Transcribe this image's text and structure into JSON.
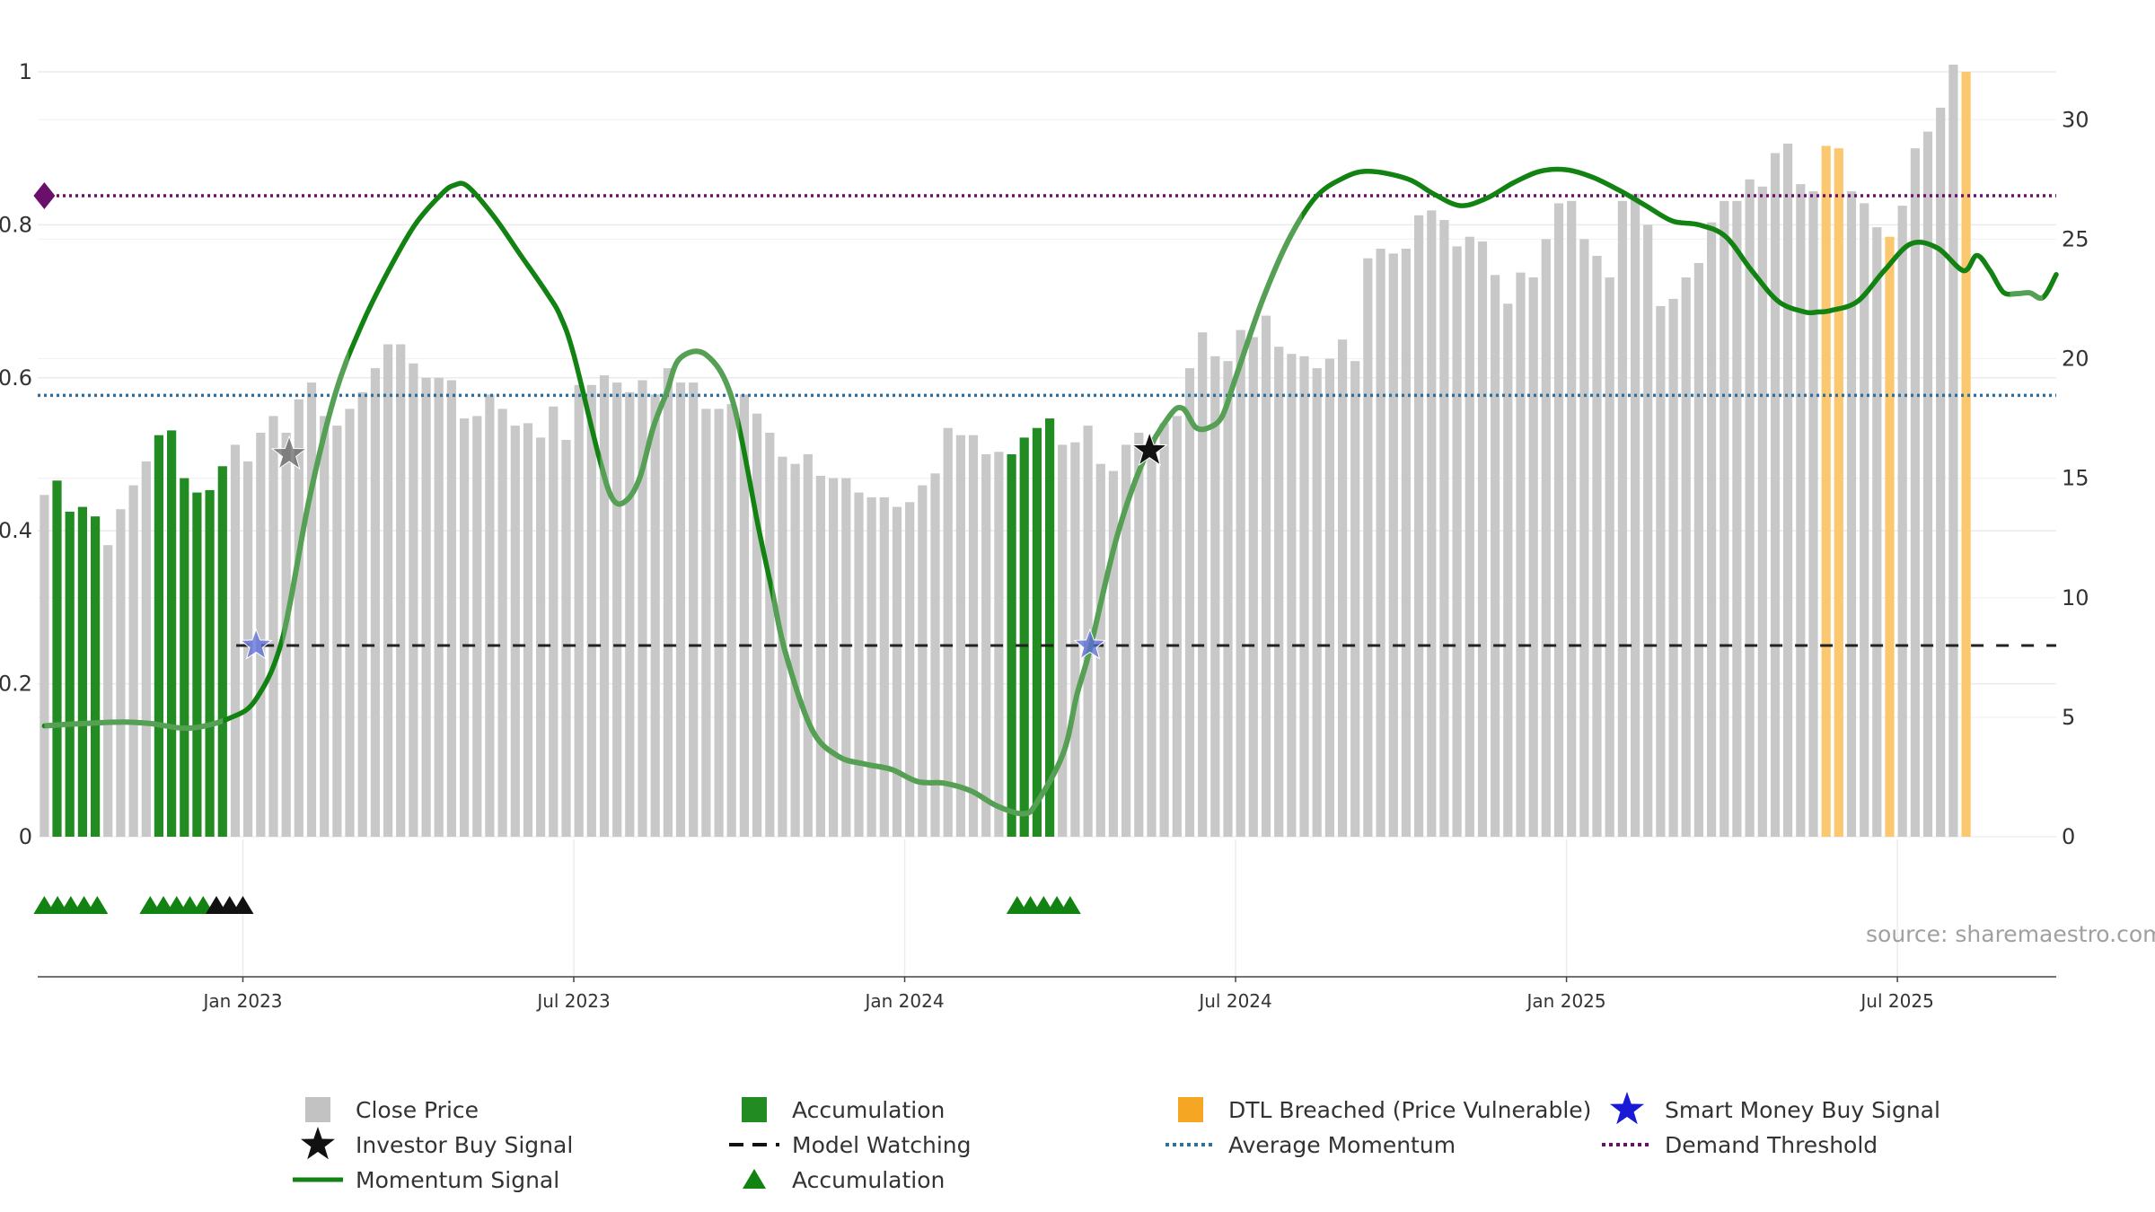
{
  "chart_data": {
    "type": "bar",
    "source_note": "source: sharemaestro.com",
    "colors": {
      "close": "#c8c8c8",
      "accumulation": "#228b22",
      "dtl": "#fbc870",
      "momentum": "#128212",
      "momentum_weak": "#55a055",
      "average": "#2f6f9f",
      "demand": "#6a0f6a",
      "model": "#222222",
      "smart_money": "#5a6ad8",
      "investor": "#111111",
      "investor_weak": "#666666"
    },
    "left_axis": {
      "range": [
        0,
        1
      ],
      "ticks": [
        0,
        0.2,
        0.4,
        0.6,
        0.8,
        1
      ],
      "tick_labels": [
        "0",
        "0.2",
        "0.4",
        "0.6",
        "0.8",
        "1"
      ]
    },
    "right_axis": {
      "range": [
        0,
        32
      ],
      "ticks": [
        0,
        5,
        10,
        15,
        20,
        25,
        30
      ],
      "tick_labels": [
        "0",
        "5",
        "10",
        "15",
        "20",
        "25",
        "30"
      ]
    },
    "time_axis": {
      "start": 2022.69,
      "end": 2025.74,
      "ticks": [
        2023.0,
        2023.5,
        2024.0,
        2024.5,
        2025.0,
        2025.5
      ],
      "tick_labels": [
        "Jan 2023",
        "Jul 2023",
        "Jan 2024",
        "Jul 2024",
        "Jan 2025",
        "Jul 2025"
      ]
    },
    "close_bar_start": 2022.7,
    "close_bar_step": 0.01923,
    "close_prices": [
      14.3,
      14.9,
      13.6,
      13.8,
      13.4,
      12.2,
      13.7,
      14.7,
      15.7,
      16.8,
      17.0,
      15.0,
      14.4,
      14.5,
      15.5,
      16.4,
      15.7,
      16.9,
      17.6,
      16.9,
      18.3,
      19.0,
      17.6,
      17.2,
      17.9,
      18.6,
      19.6,
      20.6,
      20.6,
      19.8,
      19.2,
      19.2,
      19.1,
      17.5,
      17.6,
      18.5,
      17.9,
      17.2,
      17.3,
      16.7,
      18.0,
      16.6,
      18.9,
      18.9,
      19.3,
      19.0,
      18.6,
      19.1,
      18.5,
      19.6,
      19.0,
      19.0,
      17.9,
      17.9,
      18.1,
      18.5,
      17.7,
      16.9,
      15.9,
      15.6,
      16.0,
      15.1,
      15.0,
      15.0,
      14.4,
      14.2,
      14.2,
      13.8,
      14.0,
      14.7,
      15.2,
      17.1,
      16.8,
      16.8,
      16.0,
      16.1,
      16.0,
      16.7,
      17.1,
      17.5,
      16.4,
      16.5,
      17.2,
      15.6,
      15.3,
      16.4,
      16.9,
      16.6,
      17.3,
      17.6,
      19.6,
      21.1,
      20.1,
      19.9,
      21.2,
      20.9,
      21.8,
      20.5,
      20.2,
      20.1,
      19.6,
      20.0,
      20.8,
      19.9,
      24.2,
      24.6,
      24.4,
      24.6,
      26.0,
      26.2,
      25.8,
      24.7,
      25.1,
      24.9,
      23.5,
      22.3,
      23.6,
      23.4,
      25.0,
      26.5,
      26.6,
      25.0,
      24.3,
      23.4,
      26.6,
      26.9,
      25.6,
      22.2,
      22.5,
      23.4,
      24.0,
      25.7,
      26.6,
      26.6,
      27.5,
      27.2,
      28.6,
      29.0,
      27.3,
      27.0,
      28.9,
      28.8,
      27.0,
      26.5,
      25.5,
      25.1,
      26.4,
      28.8,
      29.5,
      30.5,
      32.3,
      32.0
    ],
    "accumulation_bar_indices": [
      1,
      2,
      3,
      4,
      9,
      10,
      11,
      12,
      13,
      14,
      76,
      77,
      78,
      79
    ],
    "dtl_bar_indices": [
      140,
      141,
      145,
      151,
      152,
      153,
      154
    ],
    "momentum_curve": {
      "x": [
        2022.7,
        2022.76,
        2022.82,
        2022.86,
        2022.92,
        2022.98,
        2023.02,
        2023.06,
        2023.1,
        2023.14,
        2023.18,
        2023.22,
        2023.26,
        2023.3,
        2023.32,
        2023.34,
        2023.38,
        2023.42,
        2023.46,
        2023.48,
        2023.5,
        2023.54,
        2023.56,
        2023.58,
        2023.6,
        2023.62,
        2023.64,
        2023.66,
        2023.7,
        2023.74,
        2023.78,
        2023.8,
        2023.82,
        2023.86,
        2023.9,
        2023.94,
        2023.98,
        2024.02,
        2024.06,
        2024.1,
        2024.14,
        2024.18,
        2024.2,
        2024.24,
        2024.26,
        2024.28,
        2024.32,
        2024.36,
        2024.4,
        2024.42,
        2024.44,
        2024.46,
        2024.48,
        2024.5,
        2024.54,
        2024.58,
        2024.62,
        2024.66,
        2024.7,
        2024.76,
        2024.8,
        2024.84,
        2024.88,
        2024.92,
        2024.96,
        2025.0,
        2025.04,
        2025.08,
        2025.12,
        2025.16,
        2025.2,
        2025.24,
        2025.28,
        2025.32,
        2025.36,
        2025.38,
        2025.4,
        2025.44,
        2025.48,
        2025.52,
        2025.56,
        2025.6,
        2025.62,
        2025.64,
        2025.66,
        2025.68,
        2025.7,
        2025.72,
        2025.74
      ],
      "y": [
        0.145,
        0.148,
        0.15,
        0.148,
        0.142,
        0.155,
        0.18,
        0.26,
        0.44,
        0.58,
        0.67,
        0.74,
        0.8,
        0.84,
        0.852,
        0.85,
        0.81,
        0.76,
        0.71,
        0.68,
        0.63,
        0.49,
        0.44,
        0.44,
        0.47,
        0.535,
        0.58,
        0.625,
        0.63,
        0.57,
        0.4,
        0.32,
        0.24,
        0.14,
        0.105,
        0.095,
        0.088,
        0.072,
        0.07,
        0.06,
        0.04,
        0.03,
        0.045,
        0.11,
        0.185,
        0.245,
        0.39,
        0.49,
        0.55,
        0.56,
        0.535,
        0.535,
        0.55,
        0.6,
        0.7,
        0.78,
        0.835,
        0.86,
        0.87,
        0.86,
        0.84,
        0.825,
        0.835,
        0.855,
        0.87,
        0.872,
        0.862,
        0.845,
        0.825,
        0.805,
        0.8,
        0.785,
        0.74,
        0.7,
        0.686,
        0.686,
        0.688,
        0.7,
        0.74,
        0.775,
        0.77,
        0.74,
        0.76,
        0.74,
        0.712,
        0.71,
        0.711,
        0.705,
        0.735
      ],
      "weak_segments": [
        [
          2022.69,
          2022.97
        ],
        [
          2023.06,
          2023.16
        ],
        [
          2023.54,
          2023.75
        ],
        [
          2023.8,
          2024.6
        ],
        [
          2025.67,
          2025.72
        ]
      ]
    },
    "average_momentum": 0.577,
    "demand_threshold": 0.838,
    "model_watching": {
      "level": 0.25,
      "start": 2022.99,
      "end": 2025.74
    },
    "smart_money_signals": [
      {
        "x": 2023.02,
        "y": 0.25
      },
      {
        "x": 2024.28,
        "y": 0.25
      }
    ],
    "investor_signals": [
      {
        "x": 2023.07,
        "y": 0.5,
        "faded": true
      },
      {
        "x": 2024.37,
        "y": 0.505,
        "faded": false
      }
    ],
    "demand_marker": {
      "x": 2022.7,
      "y": 0.838
    },
    "accumulation_triangles": [
      2022.7,
      2022.72,
      2022.74,
      2022.76,
      2022.78,
      2022.86,
      2022.88,
      2022.9,
      2022.92,
      2022.94,
      2024.17,
      2024.19,
      2024.21,
      2024.23,
      2024.25
    ],
    "black_triangles": [
      2022.96,
      2022.98,
      2023.0
    ],
    "legend": [
      {
        "label": "Close Price",
        "symbol": "square",
        "color": "#c2c2c2"
      },
      {
        "label": "Accumulation",
        "symbol": "square",
        "color": "#228b22"
      },
      {
        "label": "DTL Breached (Price Vulnerable)",
        "symbol": "square",
        "color": "#f5a623"
      },
      {
        "label": "Smart Money Buy Signal",
        "symbol": "star",
        "color": "#1a1ad6"
      },
      {
        "label": "Investor Buy Signal",
        "symbol": "star",
        "color": "#111111"
      },
      {
        "label": "Model Watching",
        "symbol": "dashed",
        "color": "#111111"
      },
      {
        "label": "Average Momentum",
        "symbol": "dotted",
        "color": "#2f6f9f"
      },
      {
        "label": "Demand Threshold",
        "symbol": "dotted",
        "color": "#6a0f6a"
      },
      {
        "label": "Momentum Signal",
        "symbol": "line",
        "color": "#128212"
      },
      {
        "label": "Accumulation",
        "symbol": "triangle",
        "color": "#128212"
      }
    ]
  }
}
